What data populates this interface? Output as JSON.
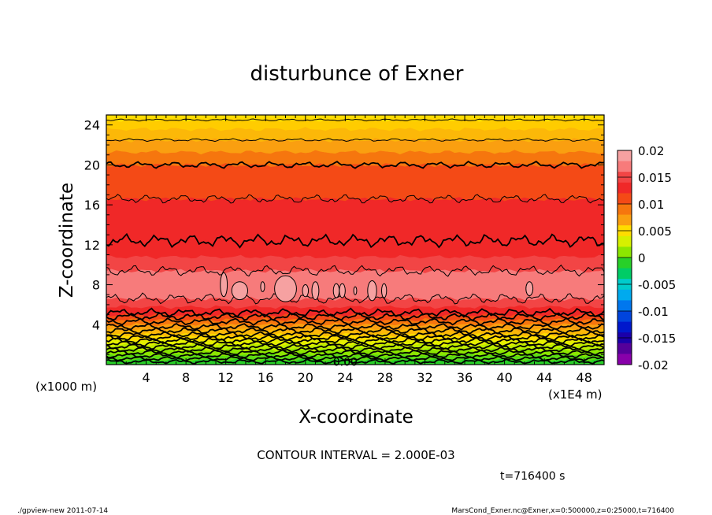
{
  "chart_data": {
    "type": "heatmap",
    "title": "disturbunce of Exner",
    "xlabel": "X-coordinate",
    "ylabel": "Z-coordinate",
    "x_unit": "(x1000 m)",
    "x_unit2": "(x1E4 m)",
    "x_ticks": [
      4,
      8,
      12,
      16,
      20,
      24,
      28,
      32,
      36,
      40,
      44,
      48
    ],
    "y_ticks": [
      4,
      8,
      12,
      16,
      20,
      24
    ],
    "xlim": [
      0,
      50
    ],
    "ylim": [
      0,
      25
    ],
    "colorbar": {
      "labels": [
        "0.02",
        "0.015",
        "0.01",
        "0.005",
        "0",
        "-0.005",
        "-0.01",
        "-0.015",
        "-0.02"
      ],
      "min": -0.02,
      "max": 0.02,
      "levels": [
        {
          "lo": 0.018,
          "hi": 0.02,
          "color": "#f6a1a1"
        },
        {
          "lo": 0.016,
          "hi": 0.018,
          "color": "#f77b7b"
        },
        {
          "lo": 0.014,
          "hi": 0.016,
          "color": "#f24545"
        },
        {
          "lo": 0.012,
          "hi": 0.014,
          "color": "#f02828"
        },
        {
          "lo": 0.01,
          "hi": 0.012,
          "color": "#f44a16"
        },
        {
          "lo": 0.008,
          "hi": 0.01,
          "color": "#f6760e"
        },
        {
          "lo": 0.006,
          "hi": 0.008,
          "color": "#fa9f10"
        },
        {
          "lo": 0.004,
          "hi": 0.006,
          "color": "#ffdc00"
        },
        {
          "lo": 0.002,
          "hi": 0.004,
          "color": "#d6f000"
        },
        {
          "lo": 0.0,
          "hi": 0.002,
          "color": "#8ce600"
        },
        {
          "lo": -0.002,
          "hi": 0.0,
          "color": "#28d028"
        },
        {
          "lo": -0.004,
          "hi": -0.002,
          "color": "#00cc66"
        },
        {
          "lo": -0.006,
          "hi": -0.004,
          "color": "#00cccc"
        },
        {
          "lo": -0.008,
          "hi": -0.006,
          "color": "#00aaee"
        },
        {
          "lo": -0.01,
          "hi": -0.008,
          "color": "#0077ee"
        },
        {
          "lo": -0.012,
          "hi": -0.01,
          "color": "#0044dd"
        },
        {
          "lo": -0.014,
          "hi": -0.012,
          "color": "#0018cc"
        },
        {
          "lo": -0.016,
          "hi": -0.014,
          "color": "#1a00aa"
        },
        {
          "lo": -0.018,
          "hi": -0.016,
          "color": "#55009a"
        },
        {
          "lo": -0.02,
          "hi": -0.018,
          "color": "#8800aa"
        }
      ]
    },
    "bands": [
      {
        "z0": 0.0,
        "z1": 0.5,
        "color": "#28d028"
      },
      {
        "z0": 0.5,
        "z1": 1.0,
        "color": "#5cdc14"
      },
      {
        "z0": 1.0,
        "z1": 1.5,
        "color": "#8ce600"
      },
      {
        "z0": 1.5,
        "z1": 2.0,
        "color": "#bcec00"
      },
      {
        "z0": 2.0,
        "z1": 2.5,
        "color": "#e6f000"
      },
      {
        "z0": 2.5,
        "z1": 3.0,
        "color": "#ffdc00"
      },
      {
        "z0": 3.0,
        "z1": 3.5,
        "color": "#fcb808"
      },
      {
        "z0": 3.5,
        "z1": 4.0,
        "color": "#fa9f10"
      },
      {
        "z0": 4.0,
        "z1": 4.5,
        "color": "#f6760e"
      },
      {
        "z0": 4.5,
        "z1": 5.0,
        "color": "#f44a16"
      },
      {
        "z0": 5.0,
        "z1": 5.8,
        "color": "#f02828"
      },
      {
        "z0": 5.8,
        "z1": 6.6,
        "color": "#f24545"
      },
      {
        "z0": 6.6,
        "z1": 9.4,
        "color": "#f77b7b"
      },
      {
        "z0": 9.4,
        "z1": 10.8,
        "color": "#f24545"
      },
      {
        "z0": 10.8,
        "z1": 12.4,
        "color": "#f02828"
      },
      {
        "z0": 12.4,
        "z1": 16.6,
        "color": "#f02828"
      },
      {
        "z0": 16.6,
        "z1": 20.0,
        "color": "#f44a16"
      },
      {
        "z0": 20.0,
        "z1": 21.3,
        "color": "#f6760e"
      },
      {
        "z0": 21.3,
        "z1": 22.5,
        "color": "#fa9f10"
      },
      {
        "z0": 22.5,
        "z1": 23.6,
        "color": "#fcb808"
      },
      {
        "z0": 23.6,
        "z1": 24.5,
        "color": "#ffcc00"
      },
      {
        "z0": 24.5,
        "z1": 25.0,
        "color": "#ffdc00"
      }
    ],
    "contours": [
      {
        "z": 0.3,
        "amp": 0.12,
        "bold": true
      },
      {
        "z": 0.6,
        "amp": 0.12,
        "bold": true
      },
      {
        "z": 0.9,
        "amp": 0.13,
        "bold": true
      },
      {
        "z": 1.2,
        "amp": 0.14,
        "bold": true
      },
      {
        "z": 1.5,
        "amp": 0.14,
        "bold": true
      },
      {
        "z": 1.8,
        "amp": 0.15,
        "bold": true
      },
      {
        "z": 2.1,
        "amp": 0.15,
        "bold": true
      },
      {
        "z": 2.4,
        "amp": 0.16,
        "bold": true
      },
      {
        "z": 2.7,
        "amp": 0.16,
        "bold": true
      },
      {
        "z": 3.0,
        "amp": 0.16,
        "bold": true
      },
      {
        "z": 3.4,
        "amp": 0.17,
        "bold": true
      },
      {
        "z": 3.8,
        "amp": 0.17,
        "bold": true
      },
      {
        "z": 4.3,
        "amp": 0.18,
        "bold": true
      },
      {
        "z": 4.8,
        "amp": 0.2,
        "bold": true
      },
      {
        "z": 5.2,
        "amp": 0.22,
        "bold": true
      },
      {
        "z": 6.6,
        "amp": 0.3,
        "bold": false
      },
      {
        "z": 9.4,
        "amp": 0.3,
        "bold": false
      },
      {
        "z": 12.4,
        "amp": 0.35,
        "bold": true
      },
      {
        "z": 16.6,
        "amp": 0.25,
        "bold": false
      },
      {
        "z": 20.0,
        "amp": 0.18,
        "bold": true
      },
      {
        "z": 22.5,
        "amp": 0.08,
        "bold": false
      },
      {
        "z": 24.5,
        "amp": 0.06,
        "bold": false
      }
    ],
    "islands": [
      {
        "x": 11.8,
        "z": 8.0,
        "rx": 0.35,
        "rz": 1.2
      },
      {
        "x": 13.4,
        "z": 7.4,
        "rx": 0.8,
        "rz": 0.9
      },
      {
        "x": 15.7,
        "z": 7.8,
        "rx": 0.2,
        "rz": 0.5
      },
      {
        "x": 18.0,
        "z": 7.6,
        "rx": 1.1,
        "rz": 1.3
      },
      {
        "x": 20.0,
        "z": 7.4,
        "rx": 0.3,
        "rz": 0.6
      },
      {
        "x": 21.0,
        "z": 7.4,
        "rx": 0.35,
        "rz": 0.9
      },
      {
        "x": 23.1,
        "z": 7.4,
        "rx": 0.3,
        "rz": 0.7
      },
      {
        "x": 23.7,
        "z": 7.4,
        "rx": 0.3,
        "rz": 0.7
      },
      {
        "x": 25.0,
        "z": 7.4,
        "rx": 0.15,
        "rz": 0.4
      },
      {
        "x": 26.7,
        "z": 7.4,
        "rx": 0.45,
        "rz": 1.0
      },
      {
        "x": 27.9,
        "z": 7.4,
        "rx": 0.25,
        "rz": 0.7
      },
      {
        "x": 42.5,
        "z": 7.6,
        "rx": 0.35,
        "rz": 0.7
      }
    ],
    "contour_label": "0.00",
    "contour_label_pos": {
      "x": 24.0,
      "z": 0.2
    }
  },
  "annotations": {
    "contour_interval": "CONTOUR INTERVAL = 2.000E-03",
    "time": "t=716400  s",
    "footer_left": "./gpview-new  2011-07-14",
    "footer_right": "MarsCond_Exner.nc@Exner,x=0:500000,z=0:25000,t=716400"
  }
}
